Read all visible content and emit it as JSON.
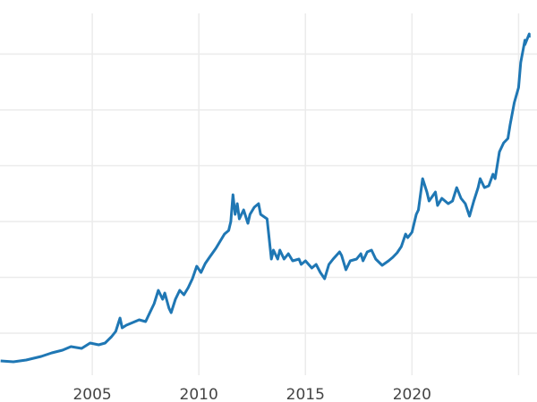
{
  "chart_data": {
    "type": "line",
    "title": "",
    "xlabel": "",
    "ylabel": "",
    "grid": true,
    "legend": "none",
    "line_color": "#1f77b4",
    "grid_color": "#ebebeb",
    "xlim": [
      2000.67,
      2025.55
    ],
    "ylim": [
      124,
      3484
    ],
    "x_ticks": [
      2005,
      2010,
      2015,
      2020,
      2025
    ],
    "x_tick_labels": [
      "2005",
      "2010",
      "2015",
      "2020",
      ""
    ],
    "y_gridlines": [
      500,
      1000,
      1500,
      2000,
      2500,
      3000
    ],
    "x": [
      2000.7,
      2001.3,
      2001.9,
      2002.6,
      2003.1,
      2003.6,
      2004.0,
      2004.5,
      2004.9,
      2005.3,
      2005.6,
      2005.9,
      2006.1,
      2006.3,
      2006.4,
      2006.6,
      2006.9,
      2007.2,
      2007.5,
      2007.7,
      2007.9,
      2008.1,
      2008.3,
      2008.4,
      2008.6,
      2008.7,
      2008.9,
      2009.1,
      2009.3,
      2009.5,
      2009.7,
      2009.9,
      2010.1,
      2010.3,
      2010.5,
      2010.8,
      2011.0,
      2011.2,
      2011.4,
      2011.5,
      2011.6,
      2011.7,
      2011.8,
      2011.9,
      2012.1,
      2012.3,
      2012.4,
      2012.6,
      2012.8,
      2012.9,
      2013.2,
      2013.4,
      2013.5,
      2013.7,
      2013.8,
      2014.0,
      2014.2,
      2014.4,
      2014.7,
      2014.8,
      2015.0,
      2015.3,
      2015.5,
      2015.7,
      2015.9,
      2016.1,
      2016.3,
      2016.6,
      2016.7,
      2016.9,
      2017.1,
      2017.4,
      2017.6,
      2017.7,
      2017.9,
      2018.1,
      2018.3,
      2018.6,
      2018.9,
      2019.1,
      2019.3,
      2019.5,
      2019.7,
      2019.8,
      2020.0,
      2020.2,
      2020.3,
      2020.5,
      2020.7,
      2020.8,
      2021.1,
      2021.2,
      2021.4,
      2021.7,
      2021.9,
      2022.1,
      2022.3,
      2022.5,
      2022.7,
      2022.9,
      2023.1,
      2023.2,
      2023.4,
      2023.6,
      2023.8,
      2023.9,
      2024.1,
      2024.3,
      2024.5,
      2024.6,
      2024.8,
      2025.0,
      2025.1,
      2025.3,
      2025.3,
      2025.5,
      2025.5
    ],
    "y": [
      252,
      244,
      260,
      292,
      324,
      348,
      380,
      364,
      412,
      396,
      412,
      468,
      516,
      636,
      548,
      572,
      596,
      620,
      604,
      684,
      764,
      884,
      804,
      860,
      724,
      684,
      804,
      884,
      844,
      908,
      988,
      1100,
      1044,
      1124,
      1180,
      1260,
      1324,
      1388,
      1420,
      1500,
      1740,
      1564,
      1660,
      1524,
      1604,
      1484,
      1564,
      1628,
      1660,
      1564,
      1524,
      1164,
      1244,
      1164,
      1244,
      1164,
      1212,
      1148,
      1164,
      1116,
      1148,
      1084,
      1116,
      1044,
      988,
      1116,
      1164,
      1228,
      1196,
      1068,
      1148,
      1164,
      1212,
      1148,
      1228,
      1244,
      1164,
      1108,
      1148,
      1180,
      1220,
      1276,
      1388,
      1356,
      1404,
      1564,
      1604,
      1884,
      1764,
      1684,
      1764,
      1644,
      1708,
      1660,
      1684,
      1804,
      1708,
      1660,
      1548,
      1684,
      1804,
      1884,
      1804,
      1820,
      1924,
      1884,
      2124,
      2204,
      2244,
      2364,
      2564,
      2700,
      2924,
      3124,
      3084,
      3180,
      3148
    ]
  }
}
